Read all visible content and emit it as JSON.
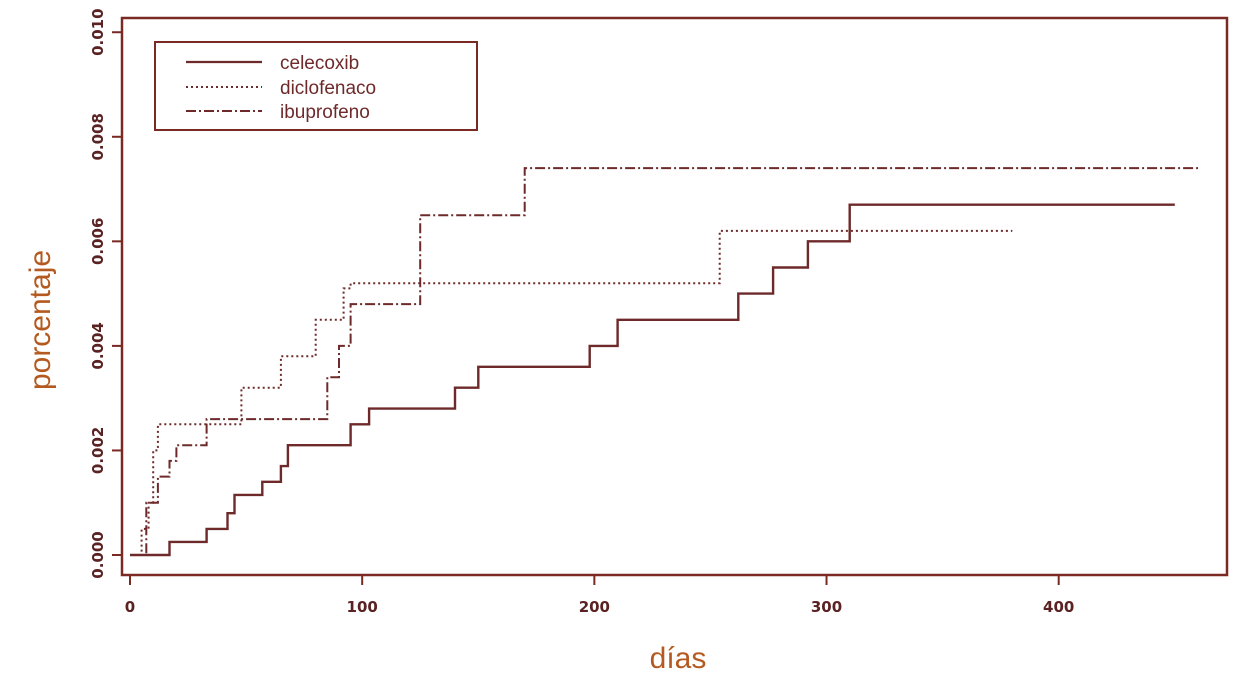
{
  "colors": {
    "frame": "#7a2a22",
    "axis_title": "#b45a20",
    "tick": "#5a2222",
    "series": "#6e2a2a",
    "background": "#ffffff"
  },
  "chart_data": {
    "type": "line",
    "step": "post",
    "title": "",
    "xlabel": "días",
    "ylabel": "porcentaje",
    "xlim": [
      0,
      460
    ],
    "ylim": [
      0,
      0.0101
    ],
    "xticks": [
      0,
      100,
      200,
      300,
      400
    ],
    "yticks": [
      0.0,
      0.002,
      0.004,
      0.006,
      0.008,
      0.01
    ],
    "xtick_labels": [
      "0",
      "100",
      "200",
      "300",
      "400"
    ],
    "ytick_labels": [
      "0.000",
      "0.002",
      "0.004",
      "0.006",
      "0.008",
      "0.010"
    ],
    "grid": false,
    "legend": "top-left",
    "series": [
      {
        "name": "celecoxib",
        "dash": "solid",
        "x": [
          0,
          17,
          33,
          42,
          45,
          57,
          65,
          68,
          95,
          103,
          110,
          140,
          150,
          198,
          210,
          262,
          277,
          292,
          310,
          450
        ],
        "y": [
          0,
          0.00025,
          0.0005,
          0.0008,
          0.00115,
          0.0014,
          0.0017,
          0.0021,
          0.0025,
          0.0028,
          0.0028,
          0.0032,
          0.0036,
          0.004,
          0.0045,
          0.005,
          0.0055,
          0.006,
          0.0067,
          0.0067
        ]
      },
      {
        "name": "diclofenaco",
        "dash": "dotted",
        "x": [
          0,
          5,
          8,
          10,
          12,
          34,
          48,
          65,
          80,
          92,
          95,
          254,
          380
        ],
        "y": [
          0,
          0.0005,
          0.001,
          0.002,
          0.0025,
          0.0025,
          0.0032,
          0.0038,
          0.0045,
          0.0051,
          0.0052,
          0.0062,
          0.0062
        ]
      },
      {
        "name": "ibuprofeno",
        "dash": "dashdot",
        "x": [
          0,
          7,
          12,
          17,
          20,
          33,
          36,
          85,
          90,
          95,
          125,
          170,
          460
        ],
        "y": [
          0,
          0.001,
          0.0015,
          0.0018,
          0.0021,
          0.0026,
          0.0026,
          0.0034,
          0.004,
          0.0048,
          0.0065,
          0.0074,
          0.0074
        ]
      }
    ]
  }
}
